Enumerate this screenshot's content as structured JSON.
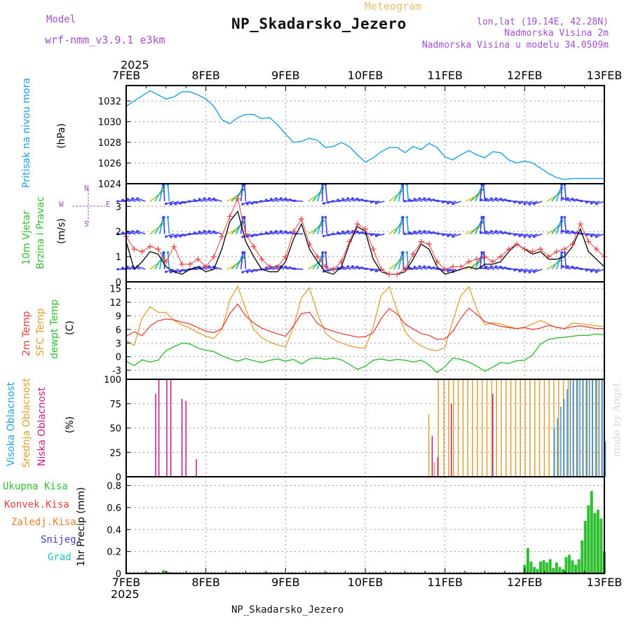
{
  "header": {
    "subtitle": "Meteogram",
    "title": "NP_Skadarsko_Jezero",
    "model_label": "Model",
    "model_name": "wrf-nmm_v3.9.1 e3km",
    "lonlat": "lon,lat (19.14E, 42.28N)",
    "elevation": "Nadmorska Visina 2m",
    "elevation_model": "Nadmorska Visina u modelu 34.0509m",
    "year": "2025",
    "footer": "NP_Skadarsko_Jezero",
    "credit": "made by Angel"
  },
  "colors": {
    "pressure": "#1aa0e8",
    "temp2m": "#e84040",
    "sfc": "#e0a030",
    "dewpt": "#30c030",
    "high_cloud": "#3090e0",
    "mid_cloud": "#e0a030",
    "low_cloud": "#c01880",
    "precip": "#30c030",
    "wind_label": "#30c030",
    "cloud_label_high": "#20a0e0",
    "cloud_label_mid": "#e0a030",
    "cloud_label_low": "#d01880",
    "precip_total": "#30c030",
    "precip_conv": "#e84040",
    "precip_strat": "#f08030",
    "precip_snow": "#4040e0",
    "precip_hail": "#20c0c0"
  },
  "chart_data": [
    {
      "type": "line",
      "id": "pressure",
      "ylabel": "Pritisak na nivou mora",
      "unit": "(hPa)",
      "x_days": [
        "7FEB",
        "8FEB",
        "9FEB",
        "10FEB",
        "11FEB",
        "12FEB",
        "13FEB"
      ],
      "ylim": [
        1024,
        1033.5
      ],
      "yticks": [
        1024,
        1026,
        1028,
        1030,
        1032
      ],
      "series": [
        {
          "name": "Pritisak",
          "x": [
            0,
            0.1,
            0.2,
            0.3,
            0.4,
            0.5,
            0.6,
            0.7,
            0.8,
            0.9,
            1.0,
            1.1,
            1.2,
            1.3,
            1.4,
            1.5,
            1.6,
            1.7,
            1.8,
            1.9,
            2.0,
            2.1,
            2.2,
            2.3,
            2.4,
            2.5,
            2.6,
            2.7,
            2.8,
            2.9,
            3.0,
            3.1,
            3.2,
            3.3,
            3.4,
            3.5,
            3.6,
            3.7,
            3.8,
            3.9,
            4.0,
            4.1,
            4.2,
            4.3,
            4.4,
            4.5,
            4.6,
            4.7,
            4.8,
            4.9,
            5.0,
            5.1,
            5.2,
            5.3,
            5.4,
            5.5,
            5.6,
            5.7,
            5.8,
            5.9,
            6.0
          ],
          "values": [
            1031.5,
            1032.0,
            1032.5,
            1033.0,
            1032.6,
            1032.2,
            1032.4,
            1032.9,
            1032.9,
            1032.6,
            1032.2,
            1031.5,
            1030.2,
            1029.8,
            1030.4,
            1030.7,
            1030.7,
            1030.3,
            1030.4,
            1029.7,
            1028.8,
            1028.0,
            1028.1,
            1028.4,
            1028.2,
            1027.5,
            1027.6,
            1028.0,
            1027.6,
            1026.8,
            1026.1,
            1026.5,
            1027.1,
            1027.5,
            1027.5,
            1027.0,
            1027.6,
            1027.3,
            1027.9,
            1027.5,
            1026.6,
            1026.3,
            1026.8,
            1027.2,
            1026.8,
            1026.5,
            1027.1,
            1027.0,
            1026.3,
            1026.0,
            1026.2,
            1026.0,
            1025.5,
            1025.0,
            1024.6,
            1024.4,
            1024.5,
            1024.5,
            1024.5,
            1024.5,
            1024.5
          ]
        }
      ]
    },
    {
      "type": "line",
      "id": "wind",
      "ylabel_1": "10m Vjetar",
      "ylabel_2": "Brzina i Pravac",
      "unit": "(m/s)",
      "compass": [
        "N",
        "S",
        "W",
        "E"
      ],
      "ylim": [
        0,
        3.9
      ],
      "yticks": [
        0,
        1,
        2,
        3
      ],
      "series": [
        {
          "name": "Brzina",
          "x": [
            0,
            0.1,
            0.2,
            0.3,
            0.4,
            0.5,
            0.6,
            0.7,
            0.8,
            0.9,
            1.0,
            1.1,
            1.2,
            1.3,
            1.4,
            1.5,
            1.6,
            1.7,
            1.8,
            1.9,
            2.0,
            2.1,
            2.2,
            2.3,
            2.4,
            2.5,
            2.6,
            2.7,
            2.8,
            2.9,
            3.0,
            3.1,
            3.2,
            3.3,
            3.4,
            3.5,
            3.6,
            3.7,
            3.8,
            3.9,
            4.0,
            4.1,
            4.2,
            4.3,
            4.4,
            4.5,
            4.6,
            4.7,
            4.8,
            4.9,
            5.0,
            5.1,
            5.2,
            5.3,
            5.4,
            5.5,
            5.6,
            5.7,
            5.8,
            5.9,
            6.0
          ],
          "values": [
            1.6,
            0.5,
            0.8,
            1.2,
            1.1,
            0.6,
            0.4,
            0.3,
            0.5,
            0.6,
            0.4,
            0.5,
            1.3,
            2.4,
            2.8,
            1.6,
            1.0,
            0.5,
            0.4,
            0.4,
            0.8,
            1.7,
            2.3,
            1.3,
            0.8,
            0.4,
            0.3,
            0.6,
            1.5,
            2.2,
            2.0,
            0.9,
            0.4,
            0.3,
            0.3,
            0.4,
            0.9,
            1.5,
            1.3,
            0.6,
            0.3,
            0.4,
            0.5,
            0.6,
            0.5,
            0.7,
            0.7,
            0.8,
            1.2,
            1.5,
            1.3,
            1.1,
            1.2,
            0.9,
            0.9,
            1.0,
            1.4,
            2.1,
            1.2,
            0.9,
            0.6
          ]
        },
        {
          "name": "Udari",
          "x": [
            0,
            0.1,
            0.2,
            0.3,
            0.4,
            0.5,
            0.6,
            0.7,
            0.8,
            0.9,
            1.0,
            1.1,
            1.2,
            1.3,
            1.4,
            1.5,
            1.6,
            1.7,
            1.8,
            1.9,
            2.0,
            2.1,
            2.2,
            2.3,
            2.4,
            2.5,
            2.6,
            2.7,
            2.8,
            2.9,
            3.0,
            3.1,
            3.2,
            3.3,
            3.4,
            3.5,
            3.6,
            3.7,
            3.8,
            3.9,
            4.0,
            4.1,
            4.2,
            4.3,
            4.4,
            4.5,
            4.6,
            4.7,
            4.8,
            4.9,
            5.0,
            5.1,
            5.2,
            5.3,
            5.4,
            5.5,
            5.6,
            5.7,
            5.8,
            5.9,
            6.0
          ],
          "values": [
            1.8,
            1.3,
            1.2,
            1.4,
            1.3,
            0.8,
            1.4,
            0.7,
            0.7,
            0.9,
            0.6,
            1.0,
            1.8,
            2.6,
            3.3,
            1.9,
            1.4,
            0.9,
            0.6,
            0.6,
            1.0,
            2.0,
            2.5,
            1.5,
            1.0,
            0.6,
            0.5,
            0.8,
            1.6,
            2.3,
            2.1,
            1.3,
            0.5,
            0.3,
            0.3,
            0.5,
            1.1,
            1.6,
            1.5,
            0.8,
            0.5,
            0.6,
            0.6,
            0.8,
            0.9,
            1.0,
            0.8,
            1.0,
            1.3,
            1.5,
            1.3,
            1.2,
            1.3,
            1.0,
            1.2,
            1.3,
            1.5,
            2.3,
            1.6,
            1.3,
            1.0
          ]
        }
      ],
      "arrow_rows": [
        0.5,
        1.9,
        3.2
      ]
    },
    {
      "type": "line",
      "id": "temperature",
      "ylabel_1": "2m Temp",
      "ylabel_2": "SFC Temp",
      "ylabel_3": "dewpt Temp",
      "unit": "(C)",
      "ylim": [
        -5,
        16.5
      ],
      "yticks": [
        -3,
        0,
        3,
        6,
        9,
        12,
        15
      ],
      "series": [
        {
          "name": "2m Temp",
          "x": [
            0,
            0.1,
            0.2,
            0.3,
            0.4,
            0.5,
            0.6,
            0.7,
            0.8,
            0.9,
            1.0,
            1.1,
            1.2,
            1.3,
            1.4,
            1.5,
            1.6,
            1.7,
            1.8,
            1.9,
            2.0,
            2.1,
            2.2,
            2.3,
            2.4,
            2.5,
            2.6,
            2.7,
            2.8,
            2.9,
            3.0,
            3.1,
            3.2,
            3.3,
            3.4,
            3.5,
            3.6,
            3.7,
            3.8,
            3.9,
            4.0,
            4.1,
            4.2,
            4.3,
            4.4,
            4.5,
            4.6,
            4.7,
            4.8,
            4.9,
            5.0,
            5.1,
            5.2,
            5.3,
            5.4,
            5.5,
            5.6,
            5.7,
            5.8,
            5.9,
            6.0
          ],
          "values": [
            4.5,
            5.5,
            4.6,
            6.8,
            7.9,
            8.3,
            8.1,
            7.6,
            7.2,
            6.4,
            5.6,
            5.3,
            6.2,
            9.5,
            11.6,
            9.0,
            7.4,
            6.3,
            5.6,
            5.0,
            4.5,
            6.8,
            9.5,
            9.8,
            7.3,
            6.2,
            5.6,
            5.1,
            4.7,
            4.3,
            4.4,
            5.3,
            8.4,
            10.6,
            9.4,
            7.2,
            6.1,
            5.1,
            4.7,
            3.8,
            3.9,
            5.6,
            8.5,
            10.7,
            9.3,
            7.7,
            7.2,
            6.7,
            6.4,
            6.2,
            6.4,
            6.0,
            6.3,
            6.9,
            6.5,
            6.2,
            6.6,
            6.8,
            6.5,
            6.2,
            6.2
          ]
        },
        {
          "name": "SFC Temp",
          "x": [
            0,
            0.1,
            0.2,
            0.3,
            0.4,
            0.5,
            0.6,
            0.7,
            0.8,
            0.9,
            1.0,
            1.1,
            1.2,
            1.3,
            1.4,
            1.5,
            1.6,
            1.7,
            1.8,
            1.9,
            2.0,
            2.1,
            2.2,
            2.3,
            2.4,
            2.5,
            2.6,
            2.7,
            2.8,
            2.9,
            3.0,
            3.1,
            3.2,
            3.3,
            3.4,
            3.5,
            3.6,
            3.7,
            3.8,
            3.9,
            4.0,
            4.1,
            4.2,
            4.3,
            4.4,
            4.5,
            4.6,
            4.7,
            4.8,
            4.9,
            5.0,
            5.1,
            5.2,
            5.3,
            5.4,
            5.5,
            5.6,
            5.7,
            5.8,
            5.9,
            6.0
          ],
          "values": [
            3.5,
            2.5,
            8.5,
            11.0,
            9.8,
            9.7,
            8.0,
            7.0,
            6.3,
            5.3,
            4.5,
            4.0,
            6.0,
            12.5,
            15.5,
            10.5,
            6.0,
            4.2,
            3.2,
            2.6,
            2.1,
            6.5,
            13.0,
            15.2,
            9.5,
            5.2,
            3.8,
            3.0,
            2.4,
            2.0,
            1.9,
            6.5,
            13.5,
            15.4,
            10.2,
            5.5,
            3.5,
            2.4,
            1.6,
            1.3,
            2.0,
            8.0,
            13.5,
            15.4,
            10.5,
            7.0,
            7.5,
            7.2,
            6.6,
            6.2,
            6.5,
            7.2,
            8.0,
            7.2,
            6.4,
            6.2,
            7.4,
            7.3,
            7.0,
            6.8,
            6.6
          ]
        },
        {
          "name": "dewpt Temp",
          "x": [
            0,
            0.1,
            0.2,
            0.3,
            0.4,
            0.5,
            0.6,
            0.7,
            0.8,
            0.9,
            1.0,
            1.1,
            1.2,
            1.3,
            1.4,
            1.5,
            1.6,
            1.7,
            1.8,
            1.9,
            2.0,
            2.1,
            2.2,
            2.3,
            2.4,
            2.5,
            2.6,
            2.7,
            2.8,
            2.9,
            3.0,
            3.1,
            3.2,
            3.3,
            3.4,
            3.5,
            3.6,
            3.7,
            3.8,
            3.9,
            4.0,
            4.1,
            4.2,
            4.3,
            4.4,
            4.5,
            4.6,
            4.7,
            4.8,
            4.9,
            5.0,
            5.1,
            5.2,
            5.3,
            5.4,
            5.5,
            5.6,
            5.7,
            5.8,
            5.9,
            6.0
          ],
          "values": [
            -1.0,
            -2.0,
            -0.7,
            -1.2,
            -0.8,
            1.3,
            2.2,
            3.0,
            2.8,
            1.9,
            1.4,
            1.1,
            0.2,
            -0.5,
            -1.0,
            -0.4,
            -0.9,
            -1.3,
            -0.8,
            -0.5,
            -1.0,
            -0.6,
            -1.6,
            -0.5,
            -0.3,
            -0.6,
            -0.3,
            -0.7,
            -1.7,
            -2.8,
            -2.1,
            -0.8,
            -0.5,
            -0.9,
            -0.6,
            -0.8,
            -1.2,
            -0.8,
            -1.8,
            -3.5,
            -2.2,
            -0.3,
            -0.6,
            -1.2,
            -2.1,
            -3.2,
            -2.3,
            -1.3,
            -1.5,
            -0.9,
            -0.8,
            0.4,
            2.8,
            3.8,
            4.1,
            4.3,
            4.5,
            4.7,
            4.7,
            5.0,
            4.8
          ]
        }
      ]
    },
    {
      "type": "bar",
      "id": "clouds",
      "ylabel_1": "Visoka Oblacnost",
      "ylabel_2": "Srednja Oblacnost",
      "ylabel_3": "Niska Oblacnost",
      "unit": "(%)",
      "ylim": [
        0,
        100
      ],
      "yticks": [
        0,
        25,
        50,
        75,
        100
      ],
      "series": [
        {
          "name": "Niska Oblacnost",
          "x": [
            0.37,
            0.41,
            0.51,
            0.56,
            0.7,
            0.75,
            0.88,
            3.84,
            3.91,
            4.08,
            4.6
          ],
          "values": [
            85,
            100,
            100,
            100,
            80,
            78,
            18,
            42,
            20,
            75,
            85
          ]
        },
        {
          "name": "Srednja Oblacnost",
          "x": [
            3.81,
            3.88,
            3.93,
            4.0,
            4.06,
            4.12,
            4.18,
            4.24,
            4.3,
            4.36,
            4.42,
            4.48,
            4.54,
            4.6,
            4.66,
            4.72,
            4.78,
            4.84,
            4.9,
            4.96,
            5.02,
            5.08,
            5.14,
            5.2,
            5.26,
            5.32,
            5.38,
            5.44,
            5.5,
            5.56,
            5.62,
            5.68,
            5.74,
            5.8,
            5.86,
            5.92,
            5.98
          ],
          "values": [
            64,
            15,
            100,
            100,
            100,
            100,
            100,
            100,
            100,
            100,
            100,
            100,
            100,
            100,
            100,
            100,
            100,
            100,
            100,
            100,
            100,
            100,
            100,
            100,
            100,
            100,
            100,
            100,
            100,
            100,
            100,
            100,
            100,
            100,
            100,
            100,
            100
          ]
        },
        {
          "name": "Visoka Oblacnost",
          "x": [
            5.36,
            5.4,
            5.44,
            5.48,
            5.52,
            5.56,
            5.6,
            5.64,
            5.68,
            5.72,
            5.76,
            5.8,
            5.84,
            5.88,
            5.92,
            5.96,
            6.0
          ],
          "values": [
            50,
            60,
            72,
            80,
            90,
            100,
            100,
            100,
            100,
            100,
            100,
            100,
            100,
            100,
            100,
            100,
            36
          ]
        }
      ]
    },
    {
      "type": "bar",
      "id": "precip",
      "legend": [
        "Ukupna Kisa",
        "Konvek.Kisa",
        "Zaledj.Kisa",
        "Snijeg",
        "Grad"
      ],
      "ylabel": "1hr Precip (mm)",
      "ylim": [
        0,
        0.88
      ],
      "yticks": [
        0,
        0.2,
        0.4,
        0.6,
        0.8
      ],
      "series": [
        {
          "name": "Ukupna Kisa",
          "x": [
            0.47,
            0.51,
            0.57,
            5.0,
            5.04,
            5.08,
            5.12,
            5.16,
            5.2,
            5.24,
            5.28,
            5.32,
            5.36,
            5.4,
            5.44,
            5.48,
            5.52,
            5.56,
            5.6,
            5.64,
            5.68,
            5.72,
            5.76,
            5.8,
            5.84,
            5.88,
            5.92,
            5.96,
            6.0
          ],
          "values": [
            0.03,
            0.02,
            0.01,
            0.08,
            0.23,
            0.11,
            0.06,
            0.04,
            0.11,
            0.12,
            0.1,
            0.13,
            0.05,
            0.1,
            0.06,
            0.04,
            0.15,
            0.17,
            0.12,
            0.08,
            0.13,
            0.3,
            0.48,
            0.62,
            0.75,
            0.55,
            0.58,
            0.5,
            0.2
          ]
        }
      ]
    }
  ]
}
